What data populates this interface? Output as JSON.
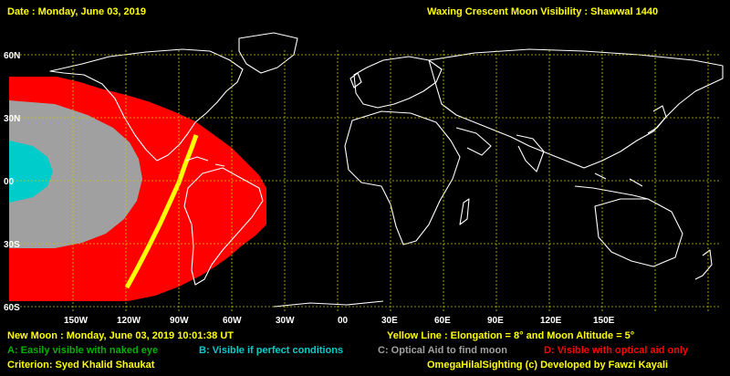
{
  "header": {
    "date_text": "Date : Monday, June 03, 2019",
    "title": "Waxing Crescent Moon Visibility : Shawwal 1440"
  },
  "map": {
    "lat_labels": [
      "60N",
      "30N",
      "00",
      "30S",
      "60S"
    ],
    "lon_labels": [
      "150W",
      "120W",
      "90W",
      "60W",
      "30W",
      "00",
      "30E",
      "60E",
      "90E",
      "120E",
      "150E"
    ],
    "colors": {
      "zone_a": "#00b000",
      "zone_b": "#00cccc",
      "zone_c": "#a0a0a0",
      "zone_d": "#ff0000",
      "yellow_line": "#ffff00",
      "grid": "#c8c800",
      "coast": "#ffffff"
    }
  },
  "footer": {
    "new_moon": "New Moon : Monday, June 03, 2019  10:01:38  UT",
    "yellow_line": "Yellow Line : Elongation = 8°  and Moon Altitude = 5°",
    "legend": [
      {
        "text": "A: Easily visible with naked eye",
        "color": "#00b000"
      },
      {
        "text": "B: Visible if perfect conditions",
        "color": "#00cccc"
      },
      {
        "text": "C: Optical Aid to find moon",
        "color": "#a0a0a0"
      },
      {
        "text": "D: Visible with optical aid only",
        "color": "#ff0000"
      }
    ],
    "criterion": "Criterion: Syed Khalid Shaukat",
    "credit": "OmegaHilalSighting  (c)  Developed by Fawzi Kayali"
  }
}
